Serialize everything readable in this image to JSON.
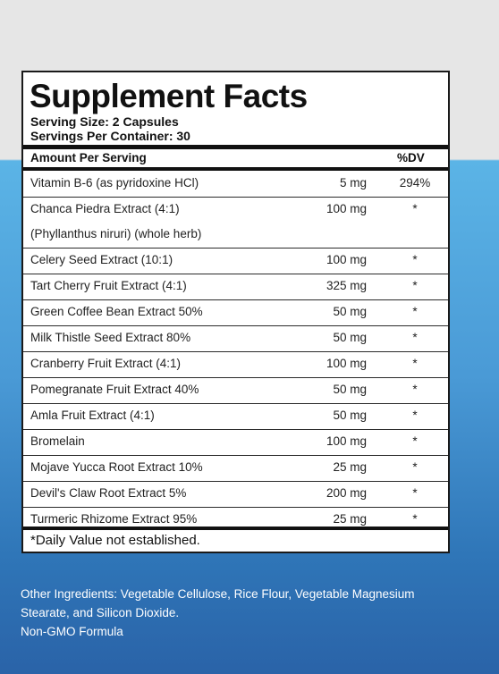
{
  "label": {
    "title": "Supplement Facts",
    "serving_size": "Serving Size: 2 Capsules",
    "servings_per_container": "Servings Per Container: 30",
    "header_amount": "Amount Per Serving",
    "header_dv": "%DV",
    "rows": [
      {
        "name": "Vitamin B-6 (as pyridoxine HCl)",
        "amount": "5 mg",
        "dv": "294%"
      },
      {
        "name": "Chanca Piedra Extract (4:1)",
        "name2": "(Phyllanthus niruri) (whole herb)",
        "amount": "100 mg",
        "dv": "*"
      },
      {
        "name": "Celery Seed Extract (10:1)",
        "amount": "100 mg",
        "dv": "*"
      },
      {
        "name": "Tart Cherry Fruit Extract (4:1)",
        "amount": "325 mg",
        "dv": "*"
      },
      {
        "name": "Green Coffee Bean Extract 50%",
        "amount": "50 mg",
        "dv": "*"
      },
      {
        "name": "Milk Thistle Seed Extract 80%",
        "amount": "50 mg",
        "dv": "*"
      },
      {
        "name": "Cranberry Fruit Extract (4:1)",
        "amount": "100 mg",
        "dv": "*"
      },
      {
        "name": "Pomegranate Fruit Extract 40%",
        "amount": "50 mg",
        "dv": "*"
      },
      {
        "name": "Amla Fruit Extract (4:1)",
        "amount": "50 mg",
        "dv": "*"
      },
      {
        "name": "Bromelain",
        "amount": "100 mg",
        "dv": "*"
      },
      {
        "name": "Mojave Yucca Root Extract 10%",
        "amount": "25 mg",
        "dv": "*"
      },
      {
        "name": "Devil's Claw Root Extract 5%",
        "amount": "200 mg",
        "dv": "*"
      },
      {
        "name": "Turmeric Rhizome Extract 95%",
        "amount": "25 mg",
        "dv": "*"
      }
    ],
    "footnote": "*Daily Value not established."
  },
  "other": {
    "line1": "Other Ingredients: Vegetable Cellulose, Rice Flour, Vegetable Magnesium",
    "line2": "Stearate, and Silicon Dioxide.",
    "line3": "Non-GMO Formula"
  }
}
